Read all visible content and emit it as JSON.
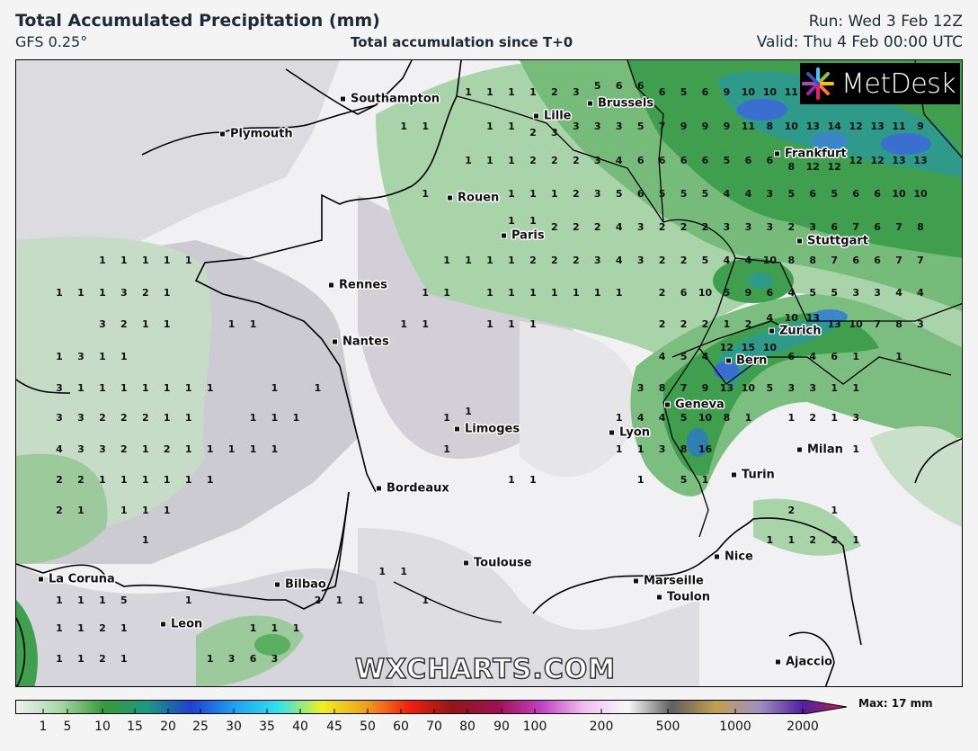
{
  "header": {
    "title": "Total Accumulated Precipitation (mm)",
    "model": "GFS 0.25°",
    "subtitle": "Total accumulation since T+0",
    "run": "Run: Wed 3 Feb 12Z",
    "valid": "Valid: Thu 4 Feb 00:00 UTC"
  },
  "logo": {
    "text": "MetDesk"
  },
  "watermark": "WXCHARTS.COM",
  "cities": [
    "Southampton",
    "Plymouth",
    "Lille",
    "Brussels",
    "Rouen",
    "Paris",
    "Frankfurt",
    "Stuttgart",
    "Rennes",
    "Nantes",
    "Zurich",
    "Bern",
    "Geneva",
    "Limoges",
    "Lyon",
    "Milan",
    "Turin",
    "Bordeaux",
    "La Coruna",
    "Bilbao",
    "Toulouse",
    "Marseille",
    "Toulon",
    "Nice",
    "Leon",
    "Ajaccio"
  ],
  "precip_grid_mm": [
    [
      null,
      null,
      null,
      null,
      null,
      null,
      null,
      null,
      null,
      null,
      null,
      null,
      null,
      null,
      null,
      null,
      null,
      null,
      null,
      1,
      1,
      1,
      1,
      2,
      3,
      5,
      6,
      6,
      6,
      5,
      6,
      9,
      10,
      10,
      11,
      null,
      null,
      null,
      null,
      null,
      null
    ],
    [
      null,
      null,
      null,
      null,
      null,
      null,
      null,
      null,
      null,
      null,
      null,
      null,
      null,
      null,
      null,
      null,
      1,
      1,
      null,
      null,
      1,
      1,
      2,
      3,
      3,
      3,
      3,
      5,
      7,
      9,
      9,
      9,
      11,
      8,
      10,
      13,
      14,
      12,
      13,
      11,
      9
    ],
    [
      null,
      null,
      null,
      null,
      null,
      null,
      null,
      null,
      null,
      null,
      null,
      null,
      null,
      null,
      null,
      null,
      null,
      null,
      null,
      1,
      1,
      1,
      2,
      2,
      2,
      3,
      4,
      6,
      6,
      6,
      6,
      5,
      6,
      6,
      8,
      12,
      12,
      12,
      12,
      13,
      13
    ],
    [
      null,
      null,
      null,
      null,
      null,
      null,
      null,
      null,
      null,
      null,
      null,
      null,
      null,
      null,
      null,
      null,
      null,
      1,
      null,
      null,
      null,
      1,
      1,
      1,
      2,
      3,
      5,
      6,
      5,
      5,
      5,
      4,
      4,
      3,
      5,
      6,
      5,
      6,
      6,
      10,
      10
    ],
    [
      null,
      null,
      null,
      null,
      null,
      null,
      null,
      null,
      null,
      null,
      null,
      null,
      null,
      null,
      null,
      null,
      null,
      null,
      null,
      null,
      null,
      1,
      1,
      2,
      2,
      2,
      4,
      3,
      2,
      2,
      2,
      3,
      3,
      3,
      2,
      3,
      6,
      7,
      6,
      7,
      8
    ],
    [
      null,
      null,
      1,
      1,
      1,
      1,
      1,
      null,
      null,
      null,
      null,
      null,
      null,
      null,
      null,
      null,
      null,
      null,
      1,
      1,
      1,
      1,
      2,
      2,
      2,
      3,
      4,
      3,
      2,
      2,
      5,
      4,
      4,
      10,
      8,
      8,
      7,
      6,
      6,
      7,
      7
    ],
    [
      1,
      1,
      1,
      3,
      2,
      1,
      null,
      null,
      null,
      null,
      null,
      null,
      null,
      null,
      null,
      null,
      null,
      1,
      1,
      null,
      1,
      1,
      1,
      1,
      1,
      1,
      1,
      null,
      2,
      6,
      10,
      5,
      9,
      6,
      4,
      5,
      5,
      3,
      3,
      4,
      4
    ],
    [
      null,
      null,
      3,
      2,
      1,
      1,
      null,
      null,
      1,
      1,
      null,
      null,
      null,
      null,
      null,
      null,
      1,
      1,
      null,
      null,
      1,
      1,
      1,
      null,
      null,
      null,
      null,
      null,
      2,
      2,
      2,
      1,
      2,
      4,
      10,
      13,
      13,
      10,
      7,
      8,
      3
    ],
    [
      1,
      3,
      1,
      1,
      null,
      null,
      null,
      null,
      null,
      null,
      null,
      null,
      null,
      null,
      null,
      null,
      null,
      null,
      null,
      null,
      null,
      null,
      null,
      null,
      null,
      null,
      null,
      null,
      4,
      5,
      4,
      12,
      15,
      10,
      6,
      4,
      6,
      1,
      null,
      1,
      null
    ],
    [
      3,
      1,
      1,
      1,
      1,
      1,
      1,
      1,
      null,
      null,
      1,
      null,
      1,
      null,
      null,
      null,
      null,
      null,
      null,
      null,
      null,
      null,
      null,
      null,
      null,
      null,
      null,
      3,
      8,
      7,
      9,
      13,
      10,
      5,
      3,
      3,
      1,
      1,
      null,
      null,
      null
    ],
    [
      3,
      3,
      2,
      2,
      2,
      1,
      1,
      null,
      null,
      1,
      1,
      1,
      null,
      null,
      null,
      null,
      null,
      null,
      1,
      1,
      null,
      null,
      null,
      null,
      null,
      null,
      1,
      4,
      4,
      5,
      10,
      8,
      1,
      null,
      1,
      2,
      1,
      3,
      null,
      null,
      null
    ],
    [
      4,
      3,
      3,
      2,
      1,
      2,
      1,
      1,
      1,
      1,
      1,
      null,
      null,
      null,
      null,
      null,
      null,
      null,
      1,
      null,
      null,
      null,
      null,
      null,
      null,
      null,
      1,
      1,
      3,
      8,
      16,
      null,
      null,
      null,
      null,
      null,
      null,
      1,
      null,
      null,
      null
    ],
    [
      2,
      2,
      1,
      1,
      1,
      1,
      1,
      1,
      null,
      null,
      null,
      null,
      null,
      null,
      null,
      null,
      null,
      null,
      null,
      null,
      null,
      1,
      1,
      null,
      null,
      null,
      null,
      1,
      null,
      5,
      1,
      null,
      null,
      null,
      null,
      null,
      null,
      null,
      null,
      null,
      null
    ],
    [
      2,
      1,
      null,
      1,
      1,
      1,
      null,
      null,
      null,
      null,
      null,
      null,
      null,
      null,
      null,
      null,
      null,
      null,
      null,
      null,
      null,
      null,
      null,
      null,
      null,
      null,
      null,
      null,
      null,
      null,
      null,
      null,
      null,
      null,
      2,
      null,
      1,
      null,
      null,
      null,
      null
    ],
    [
      null,
      null,
      null,
      null,
      1,
      null,
      null,
      null,
      null,
      null,
      null,
      null,
      null,
      null,
      null,
      null,
      null,
      null,
      null,
      null,
      null,
      null,
      null,
      null,
      null,
      null,
      null,
      null,
      null,
      null,
      null,
      null,
      null,
      1,
      1,
      2,
      2,
      1,
      null,
      null,
      null
    ],
    [
      null,
      null,
      null,
      null,
      null,
      null,
      null,
      null,
      null,
      null,
      null,
      null,
      null,
      null,
      null,
      1,
      1,
      null,
      null,
      null,
      null,
      null,
      null,
      null,
      null,
      null,
      null,
      null,
      null,
      null,
      null,
      null,
      null,
      null,
      null,
      null,
      null,
      null,
      null,
      null,
      null
    ],
    [
      1,
      1,
      1,
      5,
      null,
      null,
      1,
      null,
      null,
      null,
      null,
      null,
      2,
      1,
      1,
      null,
      null,
      1,
      null,
      null,
      null,
      null,
      null,
      null,
      null,
      null,
      null,
      null,
      null,
      null,
      null,
      null,
      null,
      null,
      null,
      null,
      null,
      null,
      null,
      null,
      null
    ],
    [
      1,
      1,
      2,
      1,
      null,
      null,
      null,
      null,
      null,
      1,
      1,
      1,
      null,
      null,
      null,
      null,
      null,
      null,
      null,
      null,
      null,
      null,
      null,
      null,
      null,
      null,
      null,
      null,
      null,
      null,
      null,
      null,
      null,
      null,
      null,
      null,
      null,
      null,
      null,
      null,
      null
    ],
    [
      1,
      1,
      2,
      1,
      null,
      null,
      null,
      1,
      3,
      6,
      3,
      null,
      null,
      null,
      null,
      null,
      null,
      null,
      null,
      null,
      null,
      null,
      null,
      null,
      null,
      null,
      null,
      null,
      null,
      null,
      null,
      null,
      null,
      null,
      null,
      null,
      null,
      null,
      null,
      null,
      null
    ]
  ],
  "colorbar": {
    "labels": [
      "1",
      "5",
      "10",
      "15",
      "20",
      "25",
      "30",
      "35",
      "40",
      "45",
      "50",
      "60",
      "70",
      "80",
      "90",
      "100",
      "200",
      "500",
      "1000",
      "2000"
    ],
    "colors": [
      "#f0f0f0",
      "#a8d8a8",
      "#3a9a3a",
      "#1a9a80",
      "#2040d0",
      "#20a0f0",
      "#30e0f0",
      "#f0f020",
      "#f0a020",
      "#f02010",
      "#901818",
      "#a01050",
      "#c040c0",
      "#f0c0f0",
      "#f8f8f8",
      "#606060",
      "#c0a050",
      "#a090c0",
      "#5020a0",
      "#c02050"
    ],
    "max_label": "Max: 17 mm"
  }
}
